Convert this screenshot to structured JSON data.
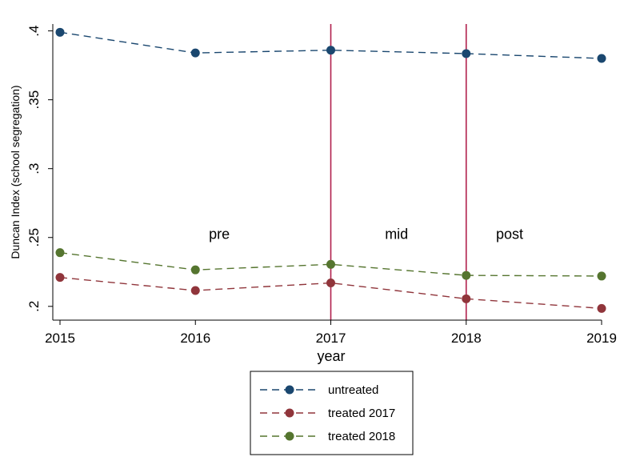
{
  "chart_data": {
    "type": "line",
    "xlabel": "year",
    "ylabel": "Duncan Index (school segregation)",
    "x": [
      2015,
      2016,
      2017,
      2018,
      2019
    ],
    "xlim": [
      2015,
      2019
    ],
    "ylim": [
      0.19,
      0.405
    ],
    "x_ticks": [
      2015,
      2016,
      2017,
      2018,
      2019
    ],
    "x_tick_labels": [
      "2015",
      "2016",
      "2017",
      "2018",
      "2019"
    ],
    "y_ticks": [
      0.2,
      0.25,
      0.3,
      0.35,
      0.4
    ],
    "y_tick_labels": [
      ".2",
      ".25",
      ".3",
      ".35",
      ".4"
    ],
    "grid": false,
    "series": [
      {
        "name": "untreated",
        "color": "#1a476f",
        "values": [
          0.399,
          0.384,
          0.386,
          0.3835,
          0.38
        ]
      },
      {
        "name": "treated 2017",
        "color": "#90353b",
        "values": [
          0.221,
          0.2115,
          0.217,
          0.2055,
          0.1985
        ]
      },
      {
        "name": "treated 2018",
        "color": "#55752f",
        "values": [
          0.239,
          0.2265,
          0.2305,
          0.2225,
          0.222
        ]
      }
    ],
    "vertical_lines": [
      {
        "x": 2017,
        "color": "#b01e4c"
      },
      {
        "x": 2018,
        "color": "#b01e4c"
      }
    ],
    "annotations": [
      {
        "text": "pre",
        "x": 2016.1,
        "y": 0.249
      },
      {
        "text": "mid",
        "x": 2017.4,
        "y": 0.249
      },
      {
        "text": "post",
        "x": 2018.22,
        "y": 0.249
      }
    ],
    "legend": {
      "position": "bottom-center",
      "entries": [
        "untreated",
        "treated 2017",
        "treated 2018"
      ]
    }
  }
}
